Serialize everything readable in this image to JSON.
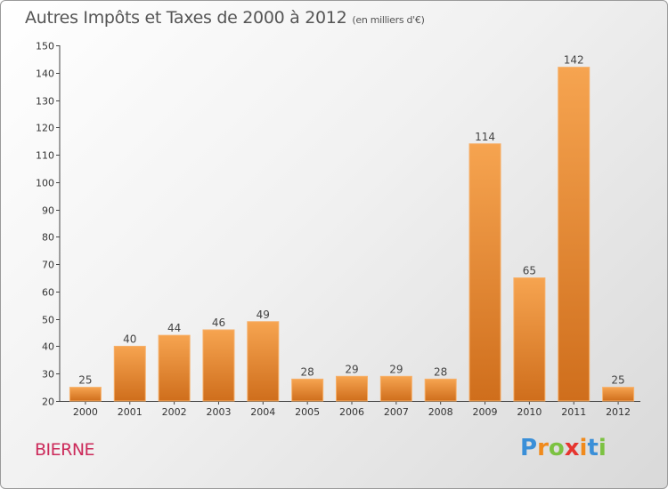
{
  "title": "Autres Impôts et Taxes de 2000 à 2012",
  "subtitle": "(en milliers d'€)",
  "city": "BIERNE",
  "logo": {
    "letters": [
      "P",
      "r",
      "o",
      "x",
      "i",
      "t",
      "i"
    ],
    "colors": [
      "#3a8fd8",
      "#f08a1c",
      "#7cc242",
      "#e6352f",
      "#f08a1c",
      "#3a8fd8",
      "#7cc242"
    ]
  },
  "colors": {
    "bar": "#f0963c",
    "bar_dark": "#d27320"
  },
  "chart_data": {
    "type": "bar",
    "title": "Autres Impôts et Taxes de 2000 à 2012",
    "subtitle": "(en milliers d'€)",
    "xlabel": "",
    "ylabel": "",
    "categories": [
      "2000",
      "2001",
      "2002",
      "2003",
      "2004",
      "2005",
      "2006",
      "2007",
      "2008",
      "2009",
      "2010",
      "2011",
      "2012"
    ],
    "values": [
      25,
      40,
      44,
      46,
      49,
      28,
      29,
      29,
      28,
      114,
      65,
      142,
      25
    ],
    "ylim": [
      20,
      150
    ],
    "yticks": [
      20,
      30,
      40,
      50,
      60,
      70,
      80,
      90,
      100,
      110,
      120,
      130,
      140,
      150
    ],
    "grid": false,
    "legend": "none"
  }
}
